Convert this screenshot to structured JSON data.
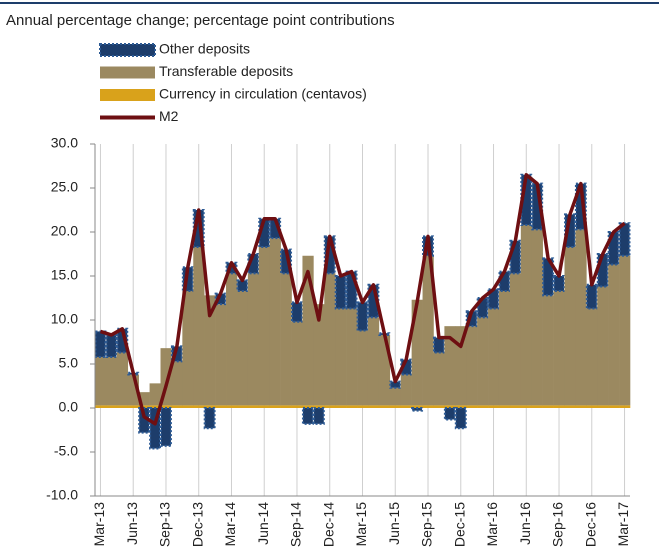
{
  "chart_data": {
    "type": "bar",
    "subtitle": "Annual percentage change; percentage point contributions",
    "categories": [
      "Mar-13",
      null,
      null,
      "Jun-13",
      null,
      null,
      "Sep-13",
      null,
      null,
      "Dec-13",
      null,
      null,
      "Mar-14",
      null,
      null,
      "Jun-14",
      null,
      null,
      "Sep-14",
      null,
      null,
      "Dec-14",
      null,
      null,
      "Mar-15",
      null,
      null,
      "Jun-15",
      null,
      null,
      "Sep-15",
      null,
      null,
      "Dec-15",
      null,
      null,
      "Mar-16",
      null,
      null,
      "Jun-16",
      null,
      null,
      "Sep-16",
      null,
      null,
      "Dec-16",
      null,
      null,
      "Mar-17"
    ],
    "series": [
      {
        "name": "Other deposits",
        "color": "#1d3d6b",
        "values": [
          2.9,
          2.5,
          2.7,
          0.2,
          -2.8,
          -4.6,
          -4.3,
          1.7,
          2.7,
          4.2,
          -2.3,
          1.2,
          1.2,
          1.2,
          2.2,
          3.2,
          2.2,
          2.7,
          2.2,
          -1.8,
          -1.8,
          4.2,
          3.7,
          4.2,
          3.2,
          3.7,
          0.2,
          0.7,
          1.7,
          -0.3,
          2.2,
          1.7,
          -1.3,
          -2.3,
          1.7,
          2.2,
          2.2,
          2.2,
          3.7,
          5.7,
          5.2,
          4.2,
          1.7,
          3.7,
          5.2,
          2.7,
          3.7,
          3.7,
          3.7
        ]
      },
      {
        "name": "Transferable deposits",
        "color": "#9b8960",
        "values": [
          5.5,
          5.5,
          6,
          3.5,
          1.5,
          2.5,
          6.5,
          5,
          13,
          18,
          12.5,
          11.5,
          15,
          13,
          15,
          18,
          19,
          15,
          9.5,
          17,
          11.5,
          15,
          11,
          11,
          8.5,
          10,
          8,
          2,
          3.5,
          12,
          17,
          6,
          9,
          9,
          9,
          10,
          11,
          13,
          15,
          20.5,
          20,
          12.5,
          13,
          18,
          20,
          11,
          13.5,
          16,
          17
        ]
      },
      {
        "name": "Currency in circulation (centavos)",
        "color": "#d9a21b",
        "values": [
          0.3,
          0.3,
          0.3,
          0.3,
          0.3,
          0.3,
          0.3,
          0.3,
          0.3,
          0.3,
          0.3,
          0.3,
          0.3,
          0.3,
          0.3,
          0.3,
          0.3,
          0.3,
          0.3,
          0.3,
          0.3,
          0.3,
          0.3,
          0.3,
          0.3,
          0.3,
          0.3,
          0.3,
          0.3,
          0.3,
          0.3,
          0.3,
          0.3,
          0.3,
          0.3,
          0.3,
          0.3,
          0.3,
          0.3,
          0.3,
          0.3,
          0.3,
          0.3,
          0.3,
          0.3,
          0.3,
          0.3,
          0.3,
          0.3
        ]
      },
      {
        "name": "M2",
        "color": "#6e0f12",
        "type": "line",
        "values": [
          8.7,
          8.3,
          9.0,
          4.0,
          -1.0,
          -1.8,
          2.5,
          7,
          16,
          22.5,
          10.5,
          13,
          16.5,
          14.5,
          17.5,
          21.5,
          21.5,
          18,
          12,
          15.5,
          10,
          19.5,
          15,
          15.5,
          12,
          14,
          8.5,
          3,
          5.5,
          12,
          19.5,
          8,
          8,
          7,
          11,
          12.5,
          13.5,
          15.5,
          19,
          26.5,
          25.5,
          17,
          15,
          22,
          25.5,
          14,
          17.5,
          20,
          21
        ]
      }
    ],
    "stacked": true,
    "ylim": [
      -10,
      30
    ],
    "yticks": [
      {
        "value": -10,
        "label": "-10.0"
      },
      {
        "value": -5,
        "label": "-5.0"
      },
      {
        "value": 0,
        "label": "0.0"
      },
      {
        "value": 5,
        "label": "5.0"
      },
      {
        "value": 10,
        "label": "10.0"
      },
      {
        "value": 15,
        "label": "15.0"
      },
      {
        "value": 20,
        "label": "20.0"
      },
      {
        "value": 25,
        "label": "25.0"
      },
      {
        "value": 30,
        "label": "30.0"
      }
    ],
    "grid": "x"
  }
}
